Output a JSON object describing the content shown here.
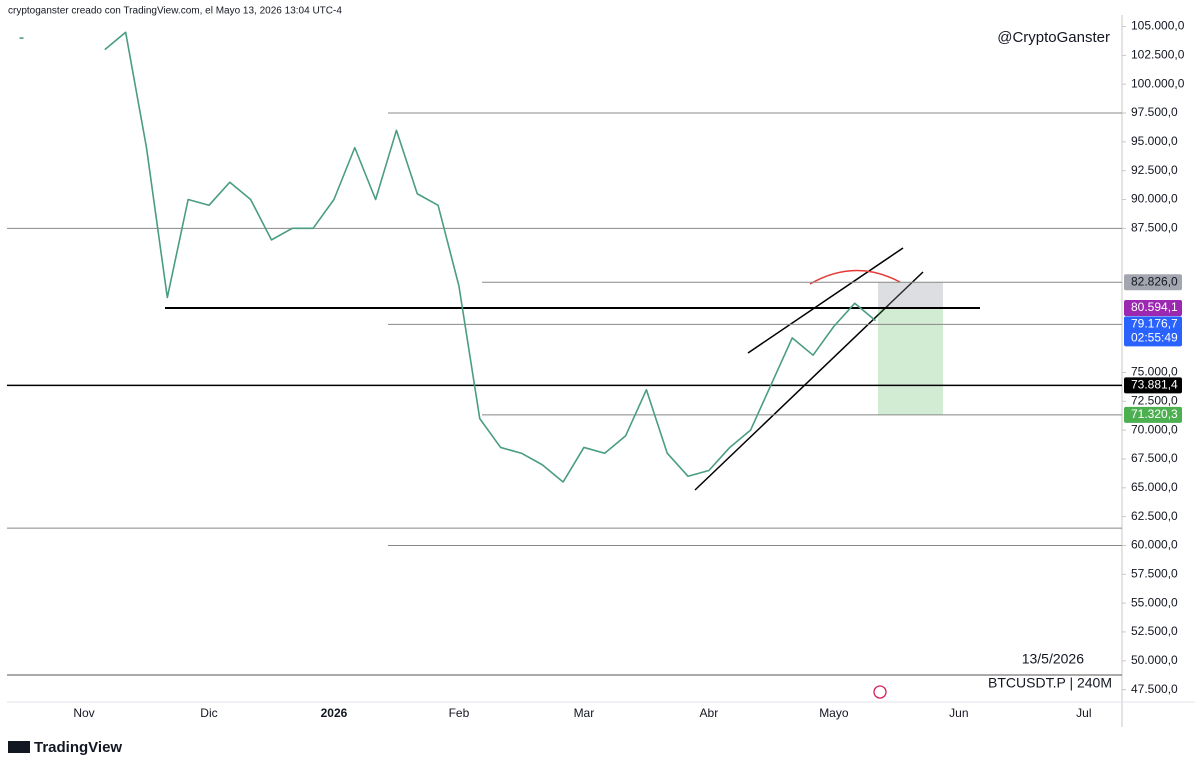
{
  "header": "cryptoganster creado con TradingView.com, el Mayo 13, 2026 13:04 UTC-4",
  "watermark": "@CryptoGanster",
  "date_label": "13/5/2026",
  "symbol_label": "BTCUSDT.P | 240M",
  "brand": "TradingView",
  "chart_data": {
    "type": "line",
    "categories": [
      null,
      null,
      null,
      "Nov",
      null,
      null,
      null,
      null,
      null,
      "Dic",
      null,
      null,
      null,
      null,
      null,
      "2026",
      null,
      null,
      null,
      null,
      null,
      "Feb",
      null,
      null,
      null,
      null,
      null,
      "Mar",
      null,
      null,
      null,
      null,
      null,
      "Abr",
      null,
      null,
      null,
      null,
      null,
      "Mayo",
      null,
      null,
      null,
      null,
      null,
      "Jun",
      null,
      null,
      null,
      null,
      null,
      "Jul",
      null,
      null
    ],
    "series": [
      {
        "color": "#4a9d82",
        "values": [
          104000,
          null,
          null,
          null,
          103000,
          104500,
          94500,
          81500,
          90000,
          89500,
          91500,
          90000,
          86500,
          87500,
          87500,
          90000,
          94500,
          90000,
          96000,
          90500,
          89500,
          82500,
          71000,
          68500,
          68000,
          67000,
          65500,
          68500,
          68000,
          69500,
          73500,
          68000,
          66000,
          66500,
          68500,
          70000,
          74000,
          78000,
          76500,
          79000,
          81000,
          79500,
          null,
          null,
          null,
          null,
          null,
          null,
          null,
          null,
          null,
          null,
          null,
          null
        ]
      }
    ],
    "ylim": [
      46600,
      106000
    ],
    "yticks": [
      {
        "value": 47500,
        "label": "47.500,0"
      },
      {
        "value": 50000,
        "label": "50.000,0"
      },
      {
        "value": 52500,
        "label": "52.500,0"
      },
      {
        "value": 55000,
        "label": "55.000,0"
      },
      {
        "value": 57500,
        "label": "57.500,0"
      },
      {
        "value": 60000,
        "label": "60.000,0"
      },
      {
        "value": 62500,
        "label": "62.500,0"
      },
      {
        "value": 65000,
        "label": "65.000,0"
      },
      {
        "value": 67500,
        "label": "67.500,0"
      },
      {
        "value": 70000,
        "label": "70.000,0"
      },
      {
        "value": 72500,
        "label": "72.500,0"
      },
      {
        "value": 75000,
        "label": "75.000,0"
      },
      {
        "value": 87500,
        "label": "87.500,0"
      },
      {
        "value": 90000,
        "label": "90.000,0"
      },
      {
        "value": 92500,
        "label": "92.500,0"
      },
      {
        "value": 95000,
        "label": "95.000,0"
      },
      {
        "value": 97500,
        "label": "97.500,0"
      },
      {
        "value": 100000,
        "label": "100.000,0"
      },
      {
        "value": 102500,
        "label": "102.500,0"
      },
      {
        "value": 105000,
        "label": "105.000,0"
      }
    ],
    "levels": [
      97500,
      87500,
      61500,
      60000
    ],
    "price_marks": [
      {
        "value": 82826,
        "label": "82.826,0",
        "color": "#a3a6af"
      },
      {
        "value": 80594.1,
        "label": "80.594,1",
        "color": "#9c27b0"
      },
      {
        "value": 79176.7,
        "label": "79.176,7",
        "color": "#2962ff",
        "countdown": "02:55:49"
      },
      {
        "value": 73881.4,
        "label": "73.881,4",
        "color": "#000000"
      },
      {
        "value": 71320.3,
        "label": "71.320,3",
        "color": "#4caf50"
      }
    ]
  }
}
